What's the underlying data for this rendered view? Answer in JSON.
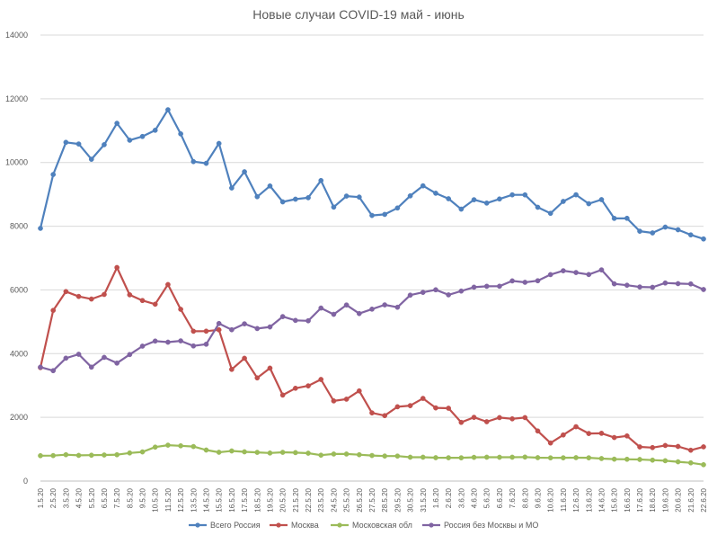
{
  "chart_data": {
    "type": "line",
    "title": "Новые случаи COVID-19 май - июнь",
    "xlabel": "",
    "ylabel": "",
    "ylim": [
      0,
      14000
    ],
    "yticks": [
      0,
      2000,
      4000,
      6000,
      8000,
      10000,
      12000,
      14000
    ],
    "grid": "horizontal",
    "legend_position": "bottom",
    "categories": [
      "1.5.20",
      "2.5.20",
      "3.5.20",
      "4.5.20",
      "5.5.20",
      "6.5.20",
      "7.5.20",
      "8.5.20",
      "9.5.20",
      "10.5.20",
      "11.5.20",
      "12.5.20",
      "13.5.20",
      "14.5.20",
      "15.5.20",
      "16.5.20",
      "17.5.20",
      "18.5.20",
      "19.5.20",
      "20.5.20",
      "21.5.20",
      "22.5.20",
      "23.5.20",
      "24.5.20",
      "25.5.20",
      "26.5.20",
      "27.5.20",
      "28.5.20",
      "29.5.20",
      "30.5.20",
      "31.5.20",
      "1.6.20",
      "2.6.20",
      "3.6.20",
      "4.6.20",
      "5.6.20",
      "6.6.20",
      "7.6.20",
      "8.6.20",
      "9.6.20",
      "10.6.20",
      "11.6.20",
      "12.6.20",
      "13.6.20",
      "14.6.20",
      "15.6.20",
      "16.6.20",
      "17.6.20",
      "18.6.20",
      "19.6.20",
      "20.6.20",
      "21.6.20",
      "22.6.20"
    ],
    "series": [
      {
        "name": "Всего Россия",
        "color": "#4f81bd",
        "values": [
          7933,
          9623,
          10633,
          10581,
          10102,
          10559,
          11231,
          10699,
          10817,
          11012,
          11656,
          10899,
          10028,
          9974,
          10598,
          9200,
          9709,
          8926,
          9263,
          8764,
          8849,
          8894,
          9434,
          8599,
          8946,
          8915,
          8338,
          8371,
          8572,
          8952,
          9268,
          9035,
          8863,
          8536,
          8831,
          8726,
          8855,
          8985,
          8984,
          8595,
          8404,
          8779,
          8987,
          8706,
          8835,
          8246,
          8248,
          7843,
          7790,
          7972,
          7889,
          7728,
          7600
        ]
      },
      {
        "name": "Москва",
        "color": "#c0504d",
        "values": [
          3561,
          5358,
          5948,
          5795,
          5714,
          5858,
          6703,
          5846,
          5667,
          5551,
          6169,
          5392,
          4703,
          4705,
          4748,
          3505,
          3855,
          3238,
          3545,
          2699,
          2913,
          2988,
          3190,
          2516,
          2570,
          2830,
          2140,
          2054,
          2332,
          2367,
          2595,
          2297,
          2286,
          1842,
          2000,
          1863,
          1992,
          1953,
          1992,
          1572,
          1195,
          1447,
          1706,
          1493,
          1499,
          1367,
          1416,
          1072,
          1051,
          1117,
          1087,
          968,
          1074
        ]
      },
      {
        "name": "Московская обл",
        "color": "#9bbb59",
        "values": [
          796,
          800,
          827,
          806,
          812,
          818,
          826,
          882,
          915,
          1066,
          1127,
          1106,
          1084,
          974,
          904,
          945,
          918,
          901,
          880,
          902,
          893,
          875,
          813,
          849,
          849,
          827,
          802,
          786,
          784,
          749,
          749,
          734,
          732,
          730,
          745,
          749,
          747,
          749,
          753,
          735,
          729,
          730,
          735,
          730,
          707,
          688,
          684,
          678,
          657,
          638,
          605,
          572,
          513
        ]
      },
      {
        "name": "Россия без Москвы и МО",
        "color": "#8064a2",
        "values": [
          3576,
          3465,
          3858,
          3980,
          3576,
          3883,
          3702,
          3971,
          4235,
          4395,
          4360,
          4401,
          4241,
          4295,
          4946,
          4750,
          4936,
          4787,
          4838,
          5163,
          5043,
          5031,
          5431,
          5234,
          5527,
          5258,
          5396,
          5531,
          5456,
          5836,
          5924,
          6004,
          5845,
          5964,
          6086,
          6114,
          6116,
          6283,
          6239,
          6288,
          6480,
          6602,
          6546,
          6483,
          6629,
          6191,
          6148,
          6093,
          6082,
          6217,
          6197,
          6188,
          6013
        ]
      }
    ]
  }
}
